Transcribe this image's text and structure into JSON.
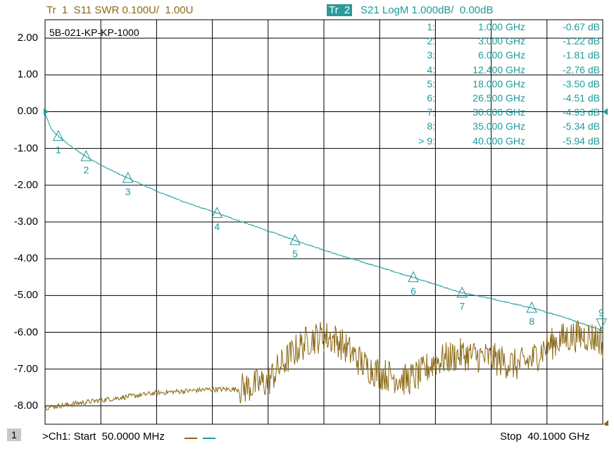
{
  "header": {
    "trace1": "Tr  1  S11 SWR 0.100U/  1.00U",
    "trace2_box": "Tr  2",
    "trace2": "S21 LogM 1.000dB/  0.00dB"
  },
  "chart_name": "5B-021-KP-KP-1000",
  "footer": {
    "channel_number": "1",
    "start": ">Ch1: Start  50.0000 MHz",
    "stop": "Stop  40.1000 GHz"
  },
  "colors": {
    "trace1": "#8a6914",
    "trace2": "#1f9a9a",
    "grid": "#000000",
    "background": "#ffffff"
  },
  "marker_table": [
    {
      "id": "1:",
      "freq": "1.000 GHz",
      "value": "-0.67 dB"
    },
    {
      "id": "2:",
      "freq": "3.000 GHz",
      "value": "-1.22 dB"
    },
    {
      "id": "3:",
      "freq": "6.000 GHz",
      "value": "-1.81 dB"
    },
    {
      "id": "4:",
      "freq": "12.400 GHz",
      "value": "-2.76 dB"
    },
    {
      "id": "5:",
      "freq": "18.000 GHz",
      "value": "-3.50 dB"
    },
    {
      "id": "6:",
      "freq": "26.500 GHz",
      "value": "-4.51 dB"
    },
    {
      "id": "7:",
      "freq": "30.000 GHz",
      "value": "-4.93 dB"
    },
    {
      "id": "8:",
      "freq": "35.000 GHz",
      "value": "-5.34 dB"
    },
    {
      "id": "> 9:",
      "freq": "40.000 GHz",
      "value": "-5.94 dB"
    }
  ],
  "chart_data": {
    "type": "line",
    "x_range": [
      0.05,
      40.1
    ],
    "ylim": [
      -8.5,
      2.5
    ],
    "y_tick_labels": [
      "2.00",
      "1.00",
      "0.00",
      "-1.00",
      "-2.00",
      "-3.00",
      "-4.00",
      "-5.00",
      "-6.00",
      "-7.00",
      "-8.00"
    ],
    "y_ticks": [
      2,
      1,
      0,
      -1,
      -2,
      -3,
      -4,
      -5,
      -6,
      -7,
      -8
    ],
    "x_divisions": 10,
    "grid": true,
    "series": [
      {
        "key": "s21",
        "x": [
          0.05,
          0.5,
          1,
          2,
          3,
          4,
          5,
          6,
          8,
          10,
          12.4,
          15,
          18,
          21,
          24,
          26.5,
          28,
          30,
          32,
          35,
          37,
          40,
          40.1
        ],
        "y": [
          -0.05,
          -0.48,
          -0.67,
          -0.97,
          -1.22,
          -1.44,
          -1.63,
          -1.81,
          -2.15,
          -2.45,
          -2.76,
          -3.1,
          -3.5,
          -3.88,
          -4.22,
          -4.51,
          -4.69,
          -4.93,
          -5.08,
          -5.34,
          -5.55,
          -5.94,
          -5.95
        ]
      },
      {
        "key": "s11_swr",
        "x": [
          0.05,
          2,
          4,
          6,
          8,
          10,
          12,
          14,
          16,
          17,
          18,
          19,
          20,
          21,
          22,
          23,
          24,
          25,
          26,
          27,
          28,
          30,
          32,
          34,
          35,
          36,
          37,
          38,
          39,
          40,
          40.1
        ],
        "y": [
          -8.05,
          -7.95,
          -7.85,
          -7.75,
          -7.65,
          -7.6,
          -7.55,
          -7.55,
          -7.35,
          -6.9,
          -6.5,
          -6.2,
          -6.1,
          -6.2,
          -6.55,
          -6.9,
          -7.1,
          -7.2,
          -7.3,
          -7.15,
          -6.8,
          -6.6,
          -6.7,
          -6.9,
          -6.75,
          -6.4,
          -6.2,
          -6.1,
          -6.1,
          -6.2,
          -6.5
        ]
      }
    ],
    "markers": [
      {
        "label": "1",
        "x": 1,
        "y": -0.67
      },
      {
        "label": "2",
        "x": 3,
        "y": -1.22
      },
      {
        "label": "3",
        "x": 6,
        "y": -1.81
      },
      {
        "label": "4",
        "x": 12.4,
        "y": -2.76
      },
      {
        "label": "5",
        "x": 18,
        "y": -3.5
      },
      {
        "label": "6",
        "x": 26.5,
        "y": -4.51
      },
      {
        "label": "7",
        "x": 30,
        "y": -4.93
      },
      {
        "label": "8",
        "x": 35,
        "y": -5.34
      },
      {
        "label": "9",
        "x": 40,
        "y": -5.94
      }
    ]
  }
}
